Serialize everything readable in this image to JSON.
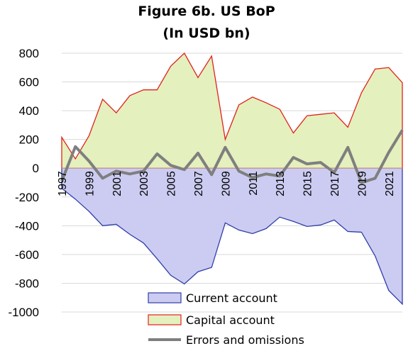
{
  "chart_data": {
    "type": "area",
    "title": "Figure 6b. US BoP",
    "subtitle": "(In USD bn)",
    "xlabel": "",
    "ylabel": "",
    "x": [
      1997,
      1998,
      1999,
      2000,
      2001,
      2002,
      2003,
      2004,
      2005,
      2006,
      2007,
      2008,
      2009,
      2010,
      2011,
      2012,
      2013,
      2014,
      2015,
      2016,
      2017,
      2018,
      2019,
      2020,
      2021,
      2022
    ],
    "x_tick_labels": [
      "1997",
      "1999",
      "2001",
      "2003",
      "2005",
      "2007",
      "2009",
      "2011",
      "2013",
      "2015",
      "2017",
      "2019",
      "2021"
    ],
    "ylim": [
      -1000,
      800
    ],
    "y_ticks": [
      800,
      600,
      400,
      200,
      0,
      -200,
      -400,
      -600,
      -800,
      -1000
    ],
    "grid": true,
    "legend_position": "bottom",
    "series": [
      {
        "name": "Current account",
        "kind": "area",
        "fill": "#ccccf2",
        "stroke": "#2f3ea8",
        "values": [
          -140,
          -215,
          -300,
          -400,
          -390,
          -460,
          -520,
          -630,
          -745,
          -805,
          -720,
          -690,
          -380,
          -430,
          -455,
          -420,
          -340,
          -370,
          -405,
          -395,
          -360,
          -440,
          -445,
          -610,
          -850,
          -945
        ]
      },
      {
        "name": "Capital account",
        "kind": "area",
        "fill": "#e4f0bd",
        "stroke": "#e0221b",
        "values": [
          215,
          65,
          225,
          480,
          385,
          505,
          545,
          545,
          710,
          800,
          630,
          780,
          200,
          440,
          495,
          455,
          410,
          245,
          365,
          375,
          385,
          285,
          525,
          690,
          700,
          595
        ]
      },
      {
        "name": "Errors and omissions",
        "kind": "line",
        "stroke": "#7f7f7f",
        "values": [
          -90,
          150,
          50,
          -70,
          -20,
          -40,
          -20,
          100,
          20,
          -10,
          105,
          -45,
          145,
          -20,
          -65,
          -40,
          -55,
          75,
          30,
          40,
          -30,
          145,
          -100,
          -70,
          110,
          265
        ]
      }
    ]
  }
}
